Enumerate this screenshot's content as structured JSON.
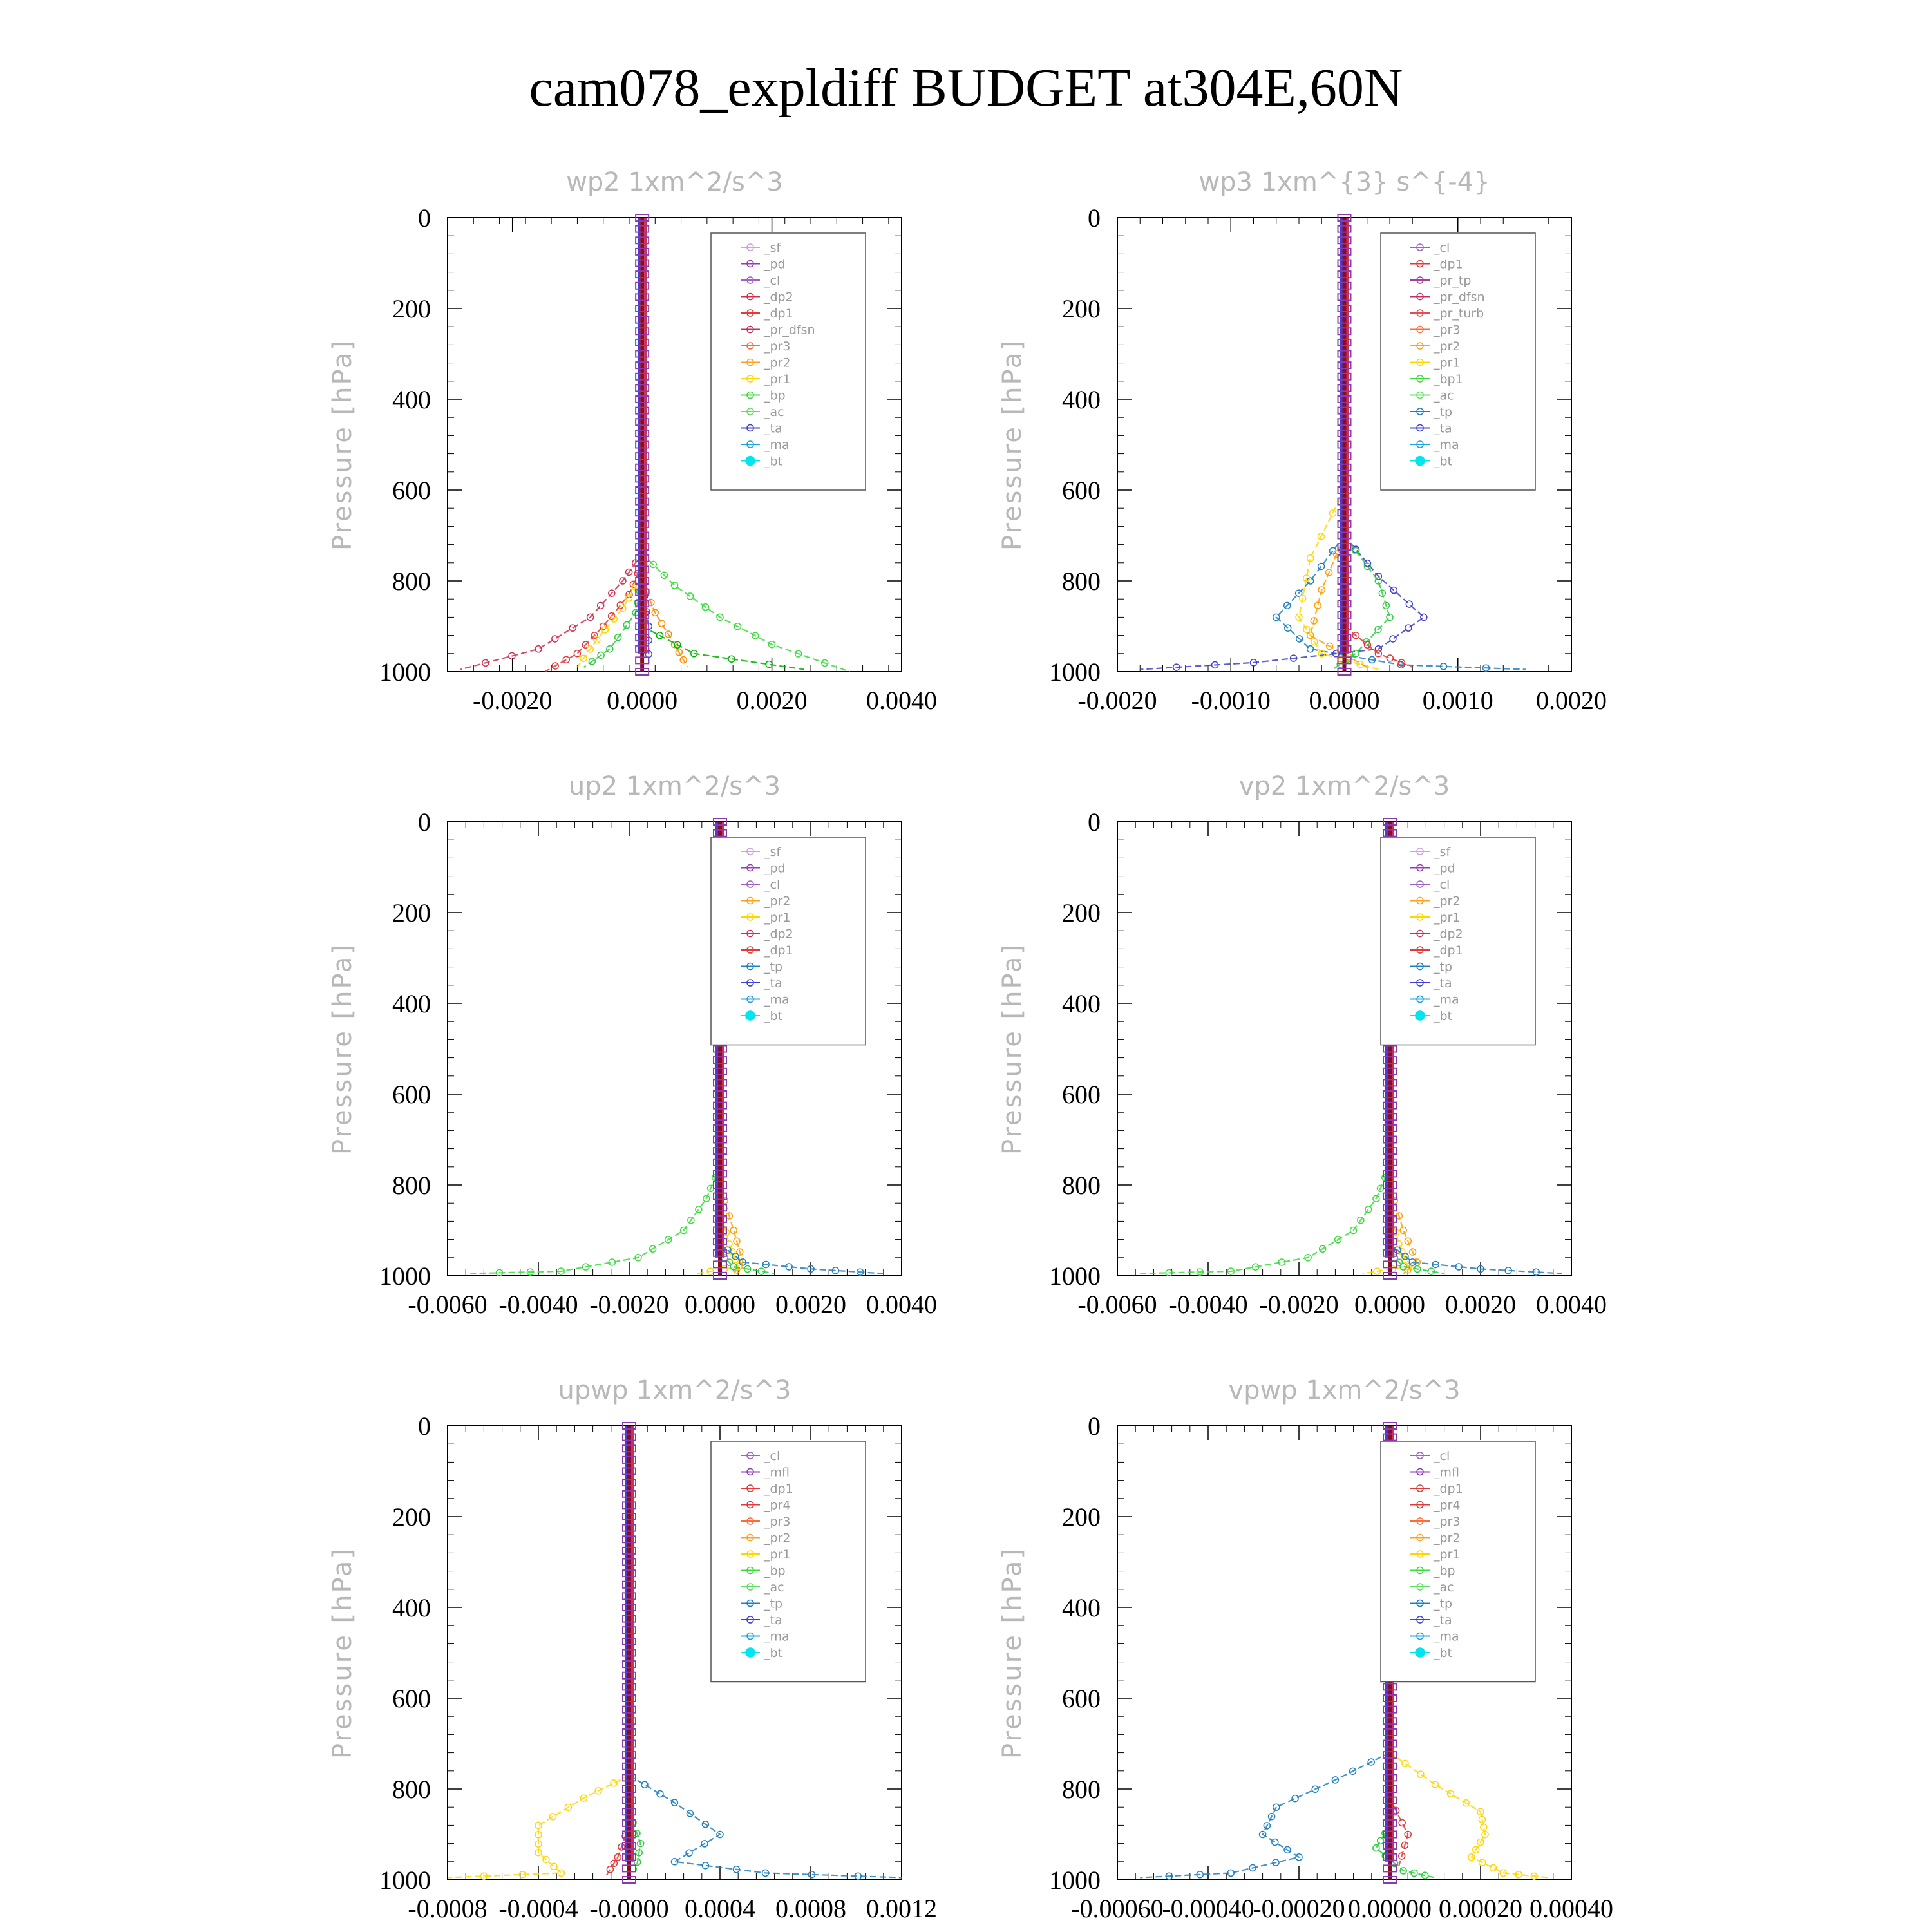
{
  "title": "cam078_expldiff  BUDGET at304E,60N",
  "colors": {
    "text_gray": "#b8b8b8",
    "bt_marker": "#00e5ee",
    "mean_line": "#8b0a2a"
  },
  "chart_data": [
    {
      "type": "line",
      "title": "wp2  1xm^2/s^3",
      "ylabel": "Pressure [hPa]",
      "xlim": [
        -0.003,
        0.004
      ],
      "ylim": [
        1000,
        0
      ],
      "xticks": [
        -0.002,
        0.0,
        0.002,
        0.004
      ],
      "xtick_labels": [
        "-0.0020",
        "0.0000",
        "0.0020",
        "0.0040"
      ],
      "yticks": [
        0,
        200,
        400,
        600,
        800,
        1000
      ],
      "ytick_labels": [
        "0",
        "200",
        "400",
        "600",
        "800",
        "1000"
      ],
      "grid": false,
      "legend_position": "top-right",
      "legend": [
        "_sf",
        "_pd",
        "_cl",
        "_dp2",
        "_dp1",
        "_pr_dfsn",
        "_pr3",
        "_pr2",
        "_pr1",
        "_bp",
        "_ac",
        "_ta",
        "_ma",
        "_bt"
      ],
      "series": [
        {
          "name": "_dp2",
          "color": "#d03050",
          "points": [
            [
              0,
              740
            ],
            [
              -0.0003,
              800
            ],
            [
              -0.0008,
              880
            ],
            [
              -0.0016,
              950
            ],
            [
              -0.0028,
              995
            ]
          ]
        },
        {
          "name": "_dp1",
          "color": "#e03a3a",
          "points": [
            [
              0,
              760
            ],
            [
              -0.0002,
              830
            ],
            [
              -0.0006,
              900
            ],
            [
              -0.001,
              960
            ],
            [
              -0.0015,
              1000
            ]
          ]
        },
        {
          "name": "_pr3",
          "color": "#ff8c00",
          "points": [
            [
              0,
              800
            ],
            [
              0.0002,
              870
            ],
            [
              0.0005,
              940
            ],
            [
              0.0007,
              990
            ]
          ]
        },
        {
          "name": "_pr2",
          "color": "#ffd700",
          "points": [
            [
              0,
              790
            ],
            [
              -0.0003,
              860
            ],
            [
              -0.0007,
              930
            ],
            [
              -0.001,
              990
            ]
          ]
        },
        {
          "name": "_pr1",
          "color": "#2ecc40",
          "points": [
            [
              0,
              800
            ],
            [
              -0.0001,
              870
            ],
            [
              -0.0005,
              950
            ],
            [
              -0.0009,
              990
            ]
          ]
        },
        {
          "name": "_bp",
          "color": "#3cdc3c",
          "points": [
            [
              0,
              740
            ],
            [
              0.0005,
              810
            ],
            [
              0.0012,
              880
            ],
            [
              0.002,
              940
            ],
            [
              0.0032,
              1000
            ]
          ]
        },
        {
          "name": "_ac",
          "color": "#00b000",
          "points": [
            [
              0,
              900
            ],
            [
              0.0008,
              960
            ],
            [
              0.0025,
              995
            ]
          ]
        },
        {
          "name": "_ta",
          "color": "#1e5dd0",
          "points": [
            [
              0,
              800
            ],
            [
              0.0001,
              900
            ],
            [
              0.0001,
              990
            ]
          ]
        }
      ]
    },
    {
      "type": "line",
      "title": "wp3  1xm^{3} s^{-4}",
      "ylabel": "Pressure [hPa]",
      "xlim": [
        -0.002,
        0.002
      ],
      "ylim": [
        1000,
        0
      ],
      "xticks": [
        -0.002,
        -0.001,
        0.0,
        0.001,
        0.002
      ],
      "xtick_labels": [
        "-0.0020",
        "-0.0010",
        "0.0000",
        "0.0010",
        "0.0020"
      ],
      "yticks": [
        0,
        200,
        400,
        600,
        800,
        1000
      ],
      "ytick_labels": [
        "0",
        "200",
        "400",
        "600",
        "800",
        "1000"
      ],
      "grid": false,
      "legend_position": "top-right",
      "legend": [
        "_cl",
        "_dp1",
        "_pr_tp",
        "_pr_dfsn",
        "_pr_turb",
        "_pr3",
        "_pr2",
        "_pr1",
        "_bp1",
        "_ac",
        "_tp",
        "_ta",
        "_ma",
        "_bt"
      ],
      "series": [
        {
          "name": "_tp",
          "color": "#2080c0",
          "points": [
            [
              0,
              700
            ],
            [
              -0.0003,
              800
            ],
            [
              -0.0006,
              880
            ],
            [
              -0.0003,
              950
            ],
            [
              0.0005,
              985
            ],
            [
              0.0016,
              995
            ]
          ]
        },
        {
          "name": "_ta",
          "color": "#4040d0",
          "points": [
            [
              0,
              700
            ],
            [
              0.0003,
              790
            ],
            [
              0.0007,
              880
            ],
            [
              0.0003,
              950
            ],
            [
              -0.0008,
              980
            ],
            [
              -0.0018,
              995
            ]
          ]
        },
        {
          "name": "_pr1",
          "color": "#ffd700",
          "points": [
            [
              0,
              600
            ],
            [
              -0.0003,
              750
            ],
            [
              -0.0004,
              880
            ],
            [
              -0.0002,
              960
            ],
            [
              0.0003,
              995
            ]
          ]
        },
        {
          "name": "_pr2",
          "color": "#ff9f00",
          "points": [
            [
              0,
              700
            ],
            [
              -0.0002,
              820
            ],
            [
              -0.0003,
              920
            ],
            [
              0.0002,
              990
            ]
          ]
        },
        {
          "name": "_bp1",
          "color": "#2ecc40",
          "points": [
            [
              0,
              700
            ],
            [
              0.0003,
              800
            ],
            [
              0.0004,
              880
            ],
            [
              0.0001,
              960
            ],
            [
              -0.0001,
              995
            ]
          ]
        },
        {
          "name": "_dp1",
          "color": "#e03a3a",
          "points": [
            [
              0,
              900
            ],
            [
              0.0003,
              960
            ],
            [
              0.0006,
              990
            ]
          ]
        }
      ]
    },
    {
      "type": "line",
      "title": "up2  1xm^2/s^3",
      "ylabel": "Pressure [hPa]",
      "xlim": [
        -0.006,
        0.004
      ],
      "ylim": [
        1000,
        0
      ],
      "xticks": [
        -0.006,
        -0.004,
        -0.002,
        0.0,
        0.002,
        0.004
      ],
      "xtick_labels": [
        "-0.0060",
        "-0.0040",
        "-0.0020",
        "0.0000",
        "0.0020",
        "0.0040"
      ],
      "yticks": [
        0,
        200,
        400,
        600,
        800,
        1000
      ],
      "ytick_labels": [
        "0",
        "200",
        "400",
        "600",
        "800",
        "1000"
      ],
      "grid": false,
      "legend_position": "top-right",
      "legend": [
        "_sf",
        "_pd",
        "_cl",
        "_pr2",
        "_pr1",
        "_dp2",
        "_dp1",
        "_tp",
        "_ta",
        "_ma",
        "_bt"
      ],
      "series": [
        {
          "name": "_dp1",
          "color": "#3cdc3c",
          "points": [
            [
              0,
              760
            ],
            [
              -0.0003,
              830
            ],
            [
              -0.0008,
              900
            ],
            [
              -0.0018,
              960
            ],
            [
              -0.0035,
              990
            ],
            [
              -0.0055,
              995
            ]
          ]
        },
        {
          "name": "_pr2",
          "color": "#ff9f00",
          "points": [
            [
              0,
              800
            ],
            [
              0.0003,
              900
            ],
            [
              0.0005,
              970
            ],
            [
              0.0003,
              995
            ]
          ]
        },
        {
          "name": "_pr1",
          "color": "#ffd700",
          "points": [
            [
              0,
              850
            ],
            [
              0.0002,
              930
            ],
            [
              0.0004,
              980
            ],
            [
              -0.0005,
              995
            ]
          ]
        },
        {
          "name": "_tp",
          "color": "#2080c0",
          "points": [
            [
              0,
              930
            ],
            [
              0.0005,
              970
            ],
            [
              0.002,
              985
            ],
            [
              0.0036,
              995
            ]
          ]
        },
        {
          "name": "_dp2",
          "color": "#2ecc40",
          "points": [
            [
              0,
              950
            ],
            [
              0.0003,
              980
            ],
            [
              0.0012,
              995
            ]
          ]
        }
      ]
    },
    {
      "type": "line",
      "title": "vp2  1xm^2/s^3",
      "ylabel": "Pressure [hPa]",
      "xlim": [
        -0.006,
        0.004
      ],
      "ylim": [
        1000,
        0
      ],
      "xticks": [
        -0.006,
        -0.004,
        -0.002,
        0.0,
        0.002,
        0.004
      ],
      "xtick_labels": [
        "-0.0060",
        "-0.0040",
        "-0.0020",
        "0.0000",
        "0.0020",
        "0.0040"
      ],
      "yticks": [
        0,
        200,
        400,
        600,
        800,
        1000
      ],
      "ytick_labels": [
        "0",
        "200",
        "400",
        "600",
        "800",
        "1000"
      ],
      "grid": false,
      "legend_position": "top-right",
      "legend": [
        "_sf",
        "_pd",
        "_cl",
        "_pr2",
        "_pr1",
        "_dp2",
        "_dp1",
        "_tp",
        "_ta",
        "_ma",
        "_bt"
      ],
      "series": [
        {
          "name": "_dp1",
          "color": "#3cdc3c",
          "points": [
            [
              0,
              760
            ],
            [
              -0.0003,
              830
            ],
            [
              -0.0008,
              900
            ],
            [
              -0.0018,
              960
            ],
            [
              -0.0035,
              990
            ],
            [
              -0.0055,
              995
            ]
          ]
        },
        {
          "name": "_pr2",
          "color": "#ff9f00",
          "points": [
            [
              0,
              800
            ],
            [
              0.0003,
              900
            ],
            [
              0.0006,
              970
            ],
            [
              0.0003,
              995
            ]
          ]
        },
        {
          "name": "_pr1",
          "color": "#ffd700",
          "points": [
            [
              0,
              850
            ],
            [
              0.0002,
              930
            ],
            [
              0.0004,
              980
            ],
            [
              -0.0006,
              995
            ]
          ]
        },
        {
          "name": "_tp",
          "color": "#2080c0",
          "points": [
            [
              0,
              930
            ],
            [
              0.0005,
              970
            ],
            [
              0.002,
              985
            ],
            [
              0.0038,
              995
            ]
          ]
        },
        {
          "name": "_dp2",
          "color": "#2ecc40",
          "points": [
            [
              0,
              950
            ],
            [
              0.0003,
              980
            ],
            [
              0.0012,
              995
            ]
          ]
        }
      ]
    },
    {
      "type": "line",
      "title": "upwp  1xm^2/s^3",
      "ylabel": "Pressure [hPa]",
      "xlim": [
        -0.0008,
        0.0012
      ],
      "ylim": [
        1000,
        0
      ],
      "xticks": [
        -0.0008,
        -0.0004,
        0.0,
        0.0004,
        0.0008,
        0.0012
      ],
      "xtick_labels": [
        "-0.0008",
        "-0.0004",
        "-0.0000",
        "0.0004",
        "0.0008",
        "0.0012"
      ],
      "yticks": [
        0,
        200,
        400,
        600,
        800,
        1000
      ],
      "ytick_labels": [
        "0",
        "200",
        "400",
        "600",
        "800",
        "1000"
      ],
      "grid": false,
      "legend_position": "top-right",
      "legend": [
        "_cl",
        "_mfl",
        "_dp1",
        "_pr4",
        "_pr3",
        "_pr2",
        "_pr1",
        "_bp",
        "_ac",
        "_tp",
        "_ta",
        "_ma",
        "_bt"
      ],
      "series": [
        {
          "name": "_pr1",
          "color": "#ffd700",
          "points": [
            [
              0,
              770
            ],
            [
              -0.0002,
              820
            ],
            [
              -0.0004,
              880
            ],
            [
              -0.0004,
              940
            ],
            [
              -0.0003,
              985
            ],
            [
              -0.0008,
              995
            ]
          ]
        },
        {
          "name": "_tp",
          "color": "#2080c0",
          "points": [
            [
              0,
              770
            ],
            [
              0.0002,
              830
            ],
            [
              0.0004,
              900
            ],
            [
              0.0002,
              960
            ],
            [
              0.0006,
              985
            ],
            [
              0.0012,
              995
            ]
          ]
        },
        {
          "name": "_bp",
          "color": "#2ecc40",
          "points": [
            [
              0,
              850
            ],
            [
              5e-05,
              920
            ],
            [
              3e-05,
              980
            ]
          ]
        },
        {
          "name": "_dp1",
          "color": "#e03a3a",
          "points": [
            [
              0,
              880
            ],
            [
              -5e-05,
              950
            ],
            [
              -0.0001,
              990
            ]
          ]
        }
      ]
    },
    {
      "type": "line",
      "title": "vpwp  1xm^2/s^3",
      "ylabel": "Pressure [hPa]",
      "xlim": [
        -0.0006,
        0.0004
      ],
      "ylim": [
        1000,
        0
      ],
      "xticks": [
        -0.0006,
        -0.0004,
        -0.0002,
        0.0,
        0.0002,
        0.0004
      ],
      "xtick_labels": [
        "-0.00060",
        "-0.00040",
        "-0.00020",
        "0.00000",
        "0.00020",
        "0.00040"
      ],
      "yticks": [
        0,
        200,
        400,
        600,
        800,
        1000
      ],
      "ytick_labels": [
        "0",
        "200",
        "400",
        "600",
        "800",
        "1000"
      ],
      "grid": false,
      "legend_position": "top-right",
      "legend": [
        "_cl",
        "_mfl",
        "_dp1",
        "_pr4",
        "_pr3",
        "_pr2",
        "_pr1",
        "_bp",
        "_ac",
        "_tp",
        "_ta",
        "_ma",
        "_bt"
      ],
      "series": [
        {
          "name": "_tp",
          "color": "#2080c0",
          "points": [
            [
              0,
              720
            ],
            [
              -0.00012,
              780
            ],
            [
              -0.00025,
              840
            ],
            [
              -0.00028,
              900
            ],
            [
              -0.0002,
              950
            ],
            [
              -0.00035,
              985
            ],
            [
              -0.00055,
              995
            ]
          ]
        },
        {
          "name": "_pr1",
          "color": "#ffd700",
          "points": [
            [
              0,
              720
            ],
            [
              0.0001,
              790
            ],
            [
              0.0002,
              850
            ],
            [
              0.00021,
              900
            ],
            [
              0.00018,
              950
            ],
            [
              0.00025,
              985
            ],
            [
              0.00035,
              995
            ]
          ]
        },
        {
          "name": "_bp",
          "color": "#2ecc40",
          "points": [
            [
              0,
              880
            ],
            [
              -3e-05,
              930
            ],
            [
              3e-05,
              980
            ],
            [
              0.0001,
              995
            ]
          ]
        },
        {
          "name": "_dp1",
          "color": "#e03a3a",
          "points": [
            [
              0,
              820
            ],
            [
              4e-05,
              900
            ],
            [
              2e-05,
              970
            ]
          ]
        }
      ]
    }
  ]
}
